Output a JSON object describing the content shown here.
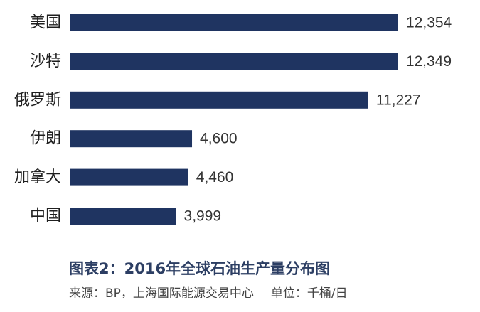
{
  "chart_data": {
    "type": "bar",
    "orientation": "horizontal",
    "categories": [
      "美国",
      "沙特",
      "俄罗斯",
      "伊朗",
      "加拿大",
      "中国"
    ],
    "values": [
      12354,
      12349,
      11227,
      4600,
      4460,
      3999
    ],
    "value_labels": [
      "12,354",
      "12,349",
      "11,227",
      "4,600",
      "4,460",
      "3,999"
    ],
    "bar_color": "#1f3461",
    "xlim": [
      0,
      12354
    ],
    "grid": false,
    "legend": false
  },
  "caption": {
    "title": "图表2：2016年全球石油生产量分布图",
    "source": "来源：BP，上海国际能源交易中心",
    "unit": "单位：千桶/日"
  }
}
